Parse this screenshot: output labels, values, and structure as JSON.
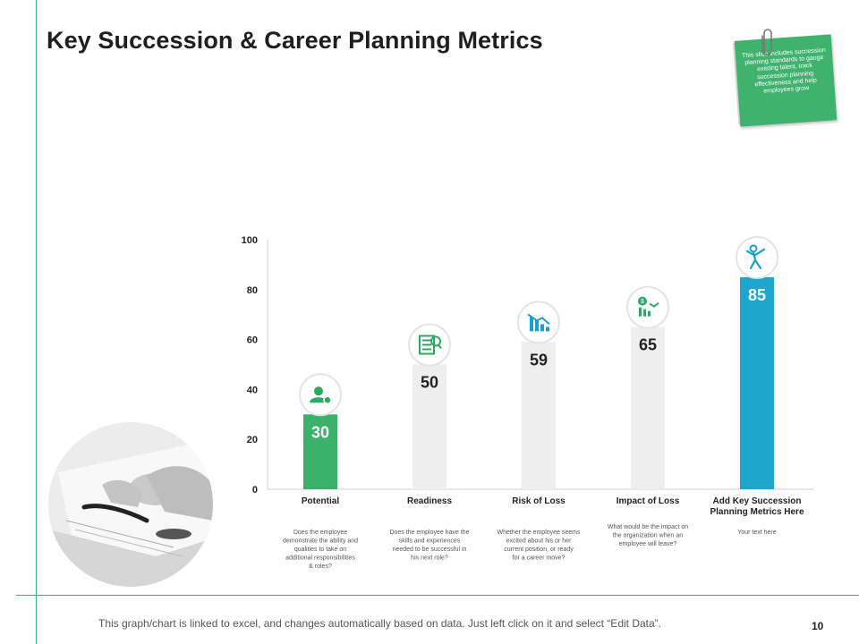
{
  "slide": {
    "title": "Key Succession & Career Planning Metrics",
    "note_text": "This slide includes succession planning standards to gauge existing talent, track succession planning effectiveness and help employees grow",
    "footer_text": "This graph/chart is linked to excel, and changes automatically based on data. Just left click on it and select “Edit Data”.",
    "page_number": "10"
  },
  "colors": {
    "accent_green": "#3fb26e",
    "bar_green": "#3cb16b",
    "bar_blue": "#1ea6cf",
    "bar_gray": "#eeeeee",
    "icon_green": "#2ea865",
    "icon_blue": "#1a9fcf"
  },
  "chart_data": {
    "type": "bar",
    "categories": [
      "Potential",
      "Readiness",
      "Risk of Loss",
      "Impact of Loss",
      "Add Key Succession Planning Metrics Here"
    ],
    "values": [
      30,
      50,
      59,
      65,
      85
    ],
    "ylim": [
      0,
      100
    ],
    "yticks": [
      0,
      20,
      40,
      60,
      80,
      100
    ],
    "descriptions": [
      "Does the employee demonstrate the ability and qualities to take on additional responsibilities & roles?",
      "Does the employee have the skills and experiences needed to be successful in his next role?",
      "Whether the employee seems excited about his or her current position, or ready for a career move?",
      "What would be the impact on the organization when an employee will leave?",
      "Your text here"
    ],
    "bar_colors": [
      "#3cb16b",
      "#eeeeee",
      "#eeeeee",
      "#eeeeee",
      "#1ea6cf"
    ],
    "label_colors": [
      "#ffffff",
      "#222222",
      "#222222",
      "#222222",
      "#ffffff"
    ],
    "icons": [
      "user-settings-icon",
      "checklist-icon",
      "declining-chart-icon",
      "finance-chart-icon",
      "climber-icon"
    ],
    "icon_colors": [
      "#2ea865",
      "#2ea865",
      "#1a9fcf",
      "#2ea865",
      "#1a9fcf"
    ],
    "grid": false,
    "legend": "none"
  }
}
